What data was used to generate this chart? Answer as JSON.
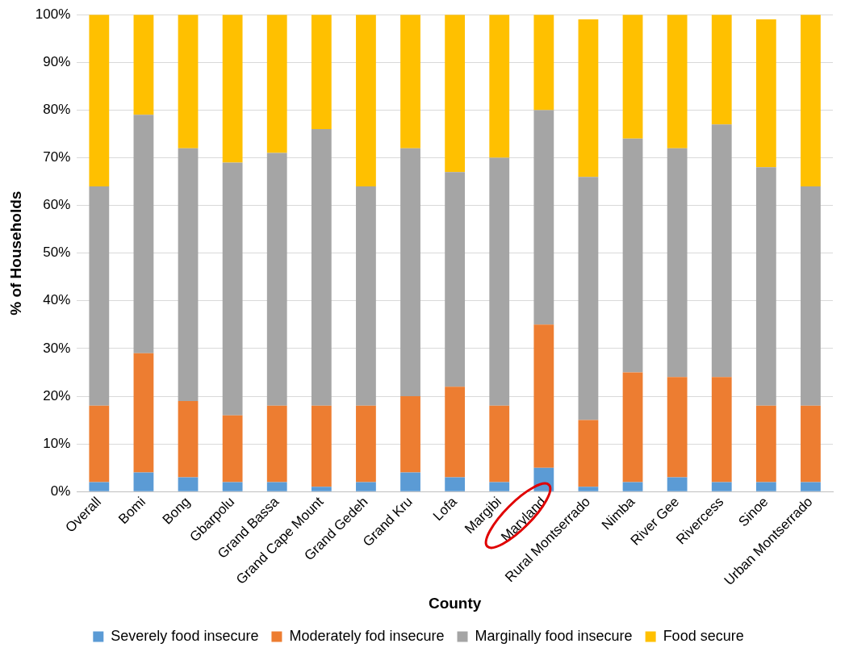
{
  "chart_data": {
    "type": "bar",
    "stacked": true,
    "xlabel": "County",
    "ylabel": "% of Households",
    "categories": [
      "Overall",
      "Bomi",
      "Bong",
      "Gbarpolu",
      "Grand Bassa",
      "Grand Cape Mount",
      "Grand Gedeh",
      "Grand Kru",
      "Lofa",
      "Margibi",
      "Maryland",
      "Rural Montserrado",
      "Nimba",
      "River Gee",
      "Rivercess",
      "Sinoe",
      "Urban Montserrado"
    ],
    "series": [
      {
        "name": "Severely food insecure",
        "color": "#5b9bd5",
        "values": [
          2,
          4,
          3,
          2,
          2,
          1,
          2,
          4,
          3,
          2,
          5,
          1,
          2,
          3,
          2,
          2,
          2
        ]
      },
      {
        "name": "Moderately fod insecure",
        "color": "#ed7d31",
        "values": [
          16,
          25,
          16,
          14,
          16,
          17,
          16,
          16,
          19,
          16,
          30,
          14,
          23,
          21,
          22,
          16,
          16
        ]
      },
      {
        "name": "Marginally food insecure",
        "color": "#a5a5a5",
        "values": [
          46,
          50,
          53,
          53,
          53,
          58,
          46,
          52,
          45,
          52,
          45,
          51,
          49,
          48,
          53,
          50,
          46
        ]
      },
      {
        "name": "Food secure",
        "color": "#ffc000",
        "values": [
          36,
          21,
          28,
          31,
          29,
          24,
          36,
          28,
          33,
          30,
          20,
          33,
          26,
          28,
          23,
          31,
          36
        ]
      }
    ],
    "ylim": [
      0,
      100
    ],
    "yticks": [
      {
        "value": 0,
        "label": "0%"
      },
      {
        "value": 10,
        "label": "10%"
      },
      {
        "value": 20,
        "label": "20%"
      },
      {
        "value": 30,
        "label": "30%"
      },
      {
        "value": 40,
        "label": "40%"
      },
      {
        "value": 50,
        "label": "50%"
      },
      {
        "value": 60,
        "label": "60%"
      },
      {
        "value": 70,
        "label": "70%"
      },
      {
        "value": 80,
        "label": "80%"
      },
      {
        "value": 90,
        "label": "90%"
      },
      {
        "value": 100,
        "label": "100%"
      }
    ],
    "grid": "y",
    "legend": "bottom"
  }
}
